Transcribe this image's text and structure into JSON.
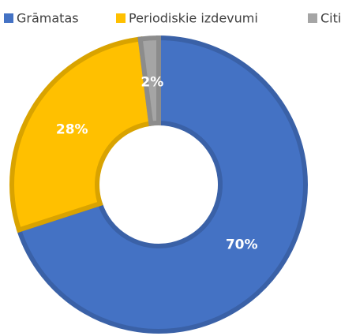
{
  "chart_data": {
    "type": "pie",
    "categories": [
      "Grāmatas",
      "Periodiskie izdevumi",
      "Citi"
    ],
    "values": [
      70,
      28,
      2
    ],
    "value_labels": [
      "70%",
      "28%",
      "2%"
    ],
    "colors": [
      "#4472c4",
      "#ffc000",
      "#a5a5a5"
    ],
    "legend": "top"
  }
}
